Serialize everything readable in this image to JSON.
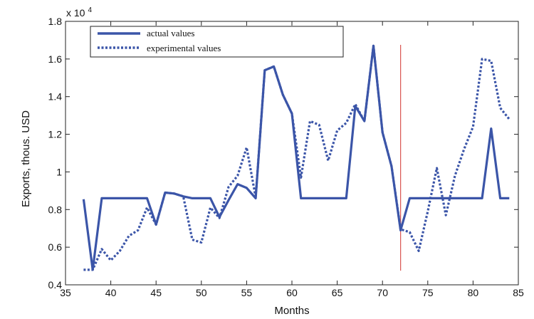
{
  "chart_data": {
    "type": "line",
    "title": "",
    "xlabel": "Months",
    "ylabel": "Exports, thous. USD",
    "y_multiplier_base": "x 10",
    "y_multiplier_exp": "4",
    "xlim": [
      35,
      85
    ],
    "ylim": [
      0.4,
      1.8
    ],
    "x_ticks": [
      35,
      40,
      45,
      50,
      55,
      60,
      65,
      70,
      75,
      80,
      85
    ],
    "x_tick_labels": [
      "35",
      "40",
      "45",
      "50",
      "55",
      "60",
      "65",
      "70",
      "75",
      "80",
      "85"
    ],
    "y_ticks": [
      0.4,
      0.6,
      0.8,
      1.0,
      1.2,
      1.4,
      1.6,
      1.8
    ],
    "y_tick_labels": [
      "0.4",
      "0.6",
      "0.8",
      "1",
      "1.2",
      "1.4",
      "1.6",
      "1.8"
    ],
    "grid": false,
    "legend_position": "top-left",
    "series": [
      {
        "name": "actual values",
        "style": "solid",
        "color": "#3b55a8",
        "x": [
          37,
          38,
          39,
          40,
          41,
          42,
          43,
          44,
          45,
          46,
          47,
          48,
          49,
          50,
          51,
          52,
          53,
          54,
          55,
          56,
          57,
          58,
          59,
          60,
          61,
          62,
          63,
          64,
          65,
          66,
          67,
          68,
          69,
          70,
          71,
          72,
          73,
          74,
          75,
          76,
          77,
          78,
          79,
          80,
          81,
          82,
          83,
          84
        ],
        "values": [
          0.855,
          0.48,
          0.86,
          0.86,
          0.86,
          0.86,
          0.86,
          0.86,
          0.72,
          0.89,
          0.885,
          0.87,
          0.86,
          0.86,
          0.86,
          0.76,
          0.85,
          0.935,
          0.915,
          0.86,
          1.54,
          1.56,
          1.41,
          1.31,
          0.86,
          0.86,
          0.86,
          0.86,
          0.86,
          0.86,
          1.35,
          1.27,
          1.67,
          1.21,
          1.03,
          0.69,
          0.86,
          0.86,
          0.86,
          0.86,
          0.86,
          0.86,
          0.86,
          0.86,
          0.86,
          1.23,
          0.86,
          0.86
        ]
      },
      {
        "name": "experimental values",
        "style": "dotted",
        "color": "#3b55a8",
        "x": [
          37,
          38,
          39,
          40,
          41,
          42,
          43,
          44,
          45,
          46,
          47,
          48,
          49,
          50,
          51,
          52,
          53,
          54,
          55,
          56,
          57,
          58,
          59,
          60,
          61,
          62,
          63,
          64,
          65,
          66,
          67,
          68,
          69,
          70,
          71,
          72,
          73,
          74,
          75,
          76,
          77,
          78,
          79,
          80,
          81,
          82,
          83,
          84
        ],
        "values": [
          0.48,
          0.48,
          0.59,
          0.53,
          0.58,
          0.66,
          0.69,
          0.81,
          0.72,
          0.89,
          0.885,
          0.87,
          0.64,
          0.625,
          0.81,
          0.755,
          0.92,
          0.98,
          1.13,
          0.865,
          1.54,
          1.56,
          1.41,
          1.31,
          0.97,
          1.27,
          1.25,
          1.06,
          1.22,
          1.26,
          1.36,
          1.27,
          1.67,
          1.21,
          1.03,
          0.695,
          0.68,
          0.58,
          0.79,
          1.02,
          0.77,
          0.98,
          1.12,
          1.24,
          1.6,
          1.59,
          1.34,
          1.28
        ]
      }
    ],
    "vertical_marker": {
      "x": 72,
      "color": "#d9534f"
    }
  }
}
